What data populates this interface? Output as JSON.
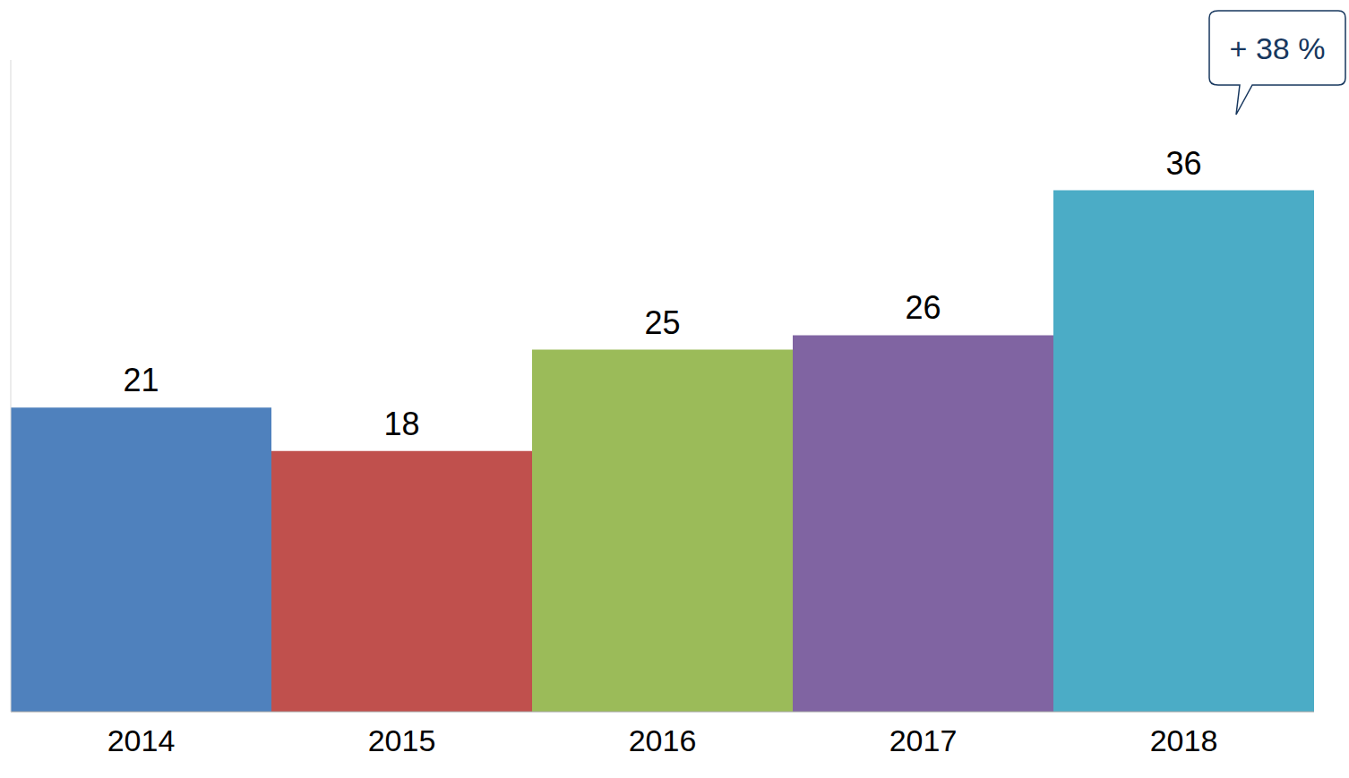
{
  "chart_data": {
    "type": "bar",
    "categories": [
      "2014",
      "2015",
      "2016",
      "2017",
      "2018"
    ],
    "values": [
      21,
      18,
      25,
      26,
      36
    ],
    "colors": [
      "#4f81bd",
      "#c0504d",
      "#9bbb59",
      "#8064a2",
      "#4bacc6"
    ],
    "ylim": [
      0,
      45
    ],
    "yticks": [],
    "grid": false,
    "data_labels": true,
    "tick_labels": "x",
    "annotations": [
      "+ 38 %"
    ]
  }
}
